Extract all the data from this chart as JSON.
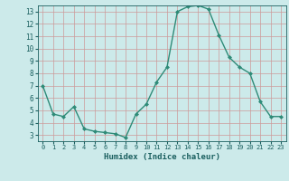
{
  "x": [
    0,
    1,
    2,
    3,
    4,
    5,
    6,
    7,
    8,
    9,
    10,
    11,
    12,
    13,
    14,
    15,
    16,
    17,
    18,
    19,
    20,
    21,
    22,
    23
  ],
  "y": [
    7,
    4.7,
    4.5,
    5.3,
    3.5,
    3.3,
    3.2,
    3.1,
    2.8,
    4.7,
    5.5,
    7.3,
    8.5,
    13.0,
    13.4,
    13.5,
    13.2,
    11.1,
    9.3,
    8.5,
    8.0,
    5.7,
    4.5,
    4.5
  ],
  "line_color": "#2e8b78",
  "marker": "D",
  "marker_size": 2,
  "line_width": 1.0,
  "bg_color": "#cceaea",
  "grid_color": "#aacfcf",
  "xlabel": "Humidex (Indice chaleur)",
  "xlabel_fontsize": 6.5,
  "tick_label_color": "#1a5f5f",
  "xlim": [
    -0.5,
    23.5
  ],
  "ylim": [
    2.5,
    13.5
  ],
  "yticks": [
    3,
    4,
    5,
    6,
    7,
    8,
    9,
    10,
    11,
    12,
    13
  ],
  "xticks": [
    0,
    1,
    2,
    3,
    4,
    5,
    6,
    7,
    8,
    9,
    10,
    11,
    12,
    13,
    14,
    15,
    16,
    17,
    18,
    19,
    20,
    21,
    22,
    23
  ]
}
